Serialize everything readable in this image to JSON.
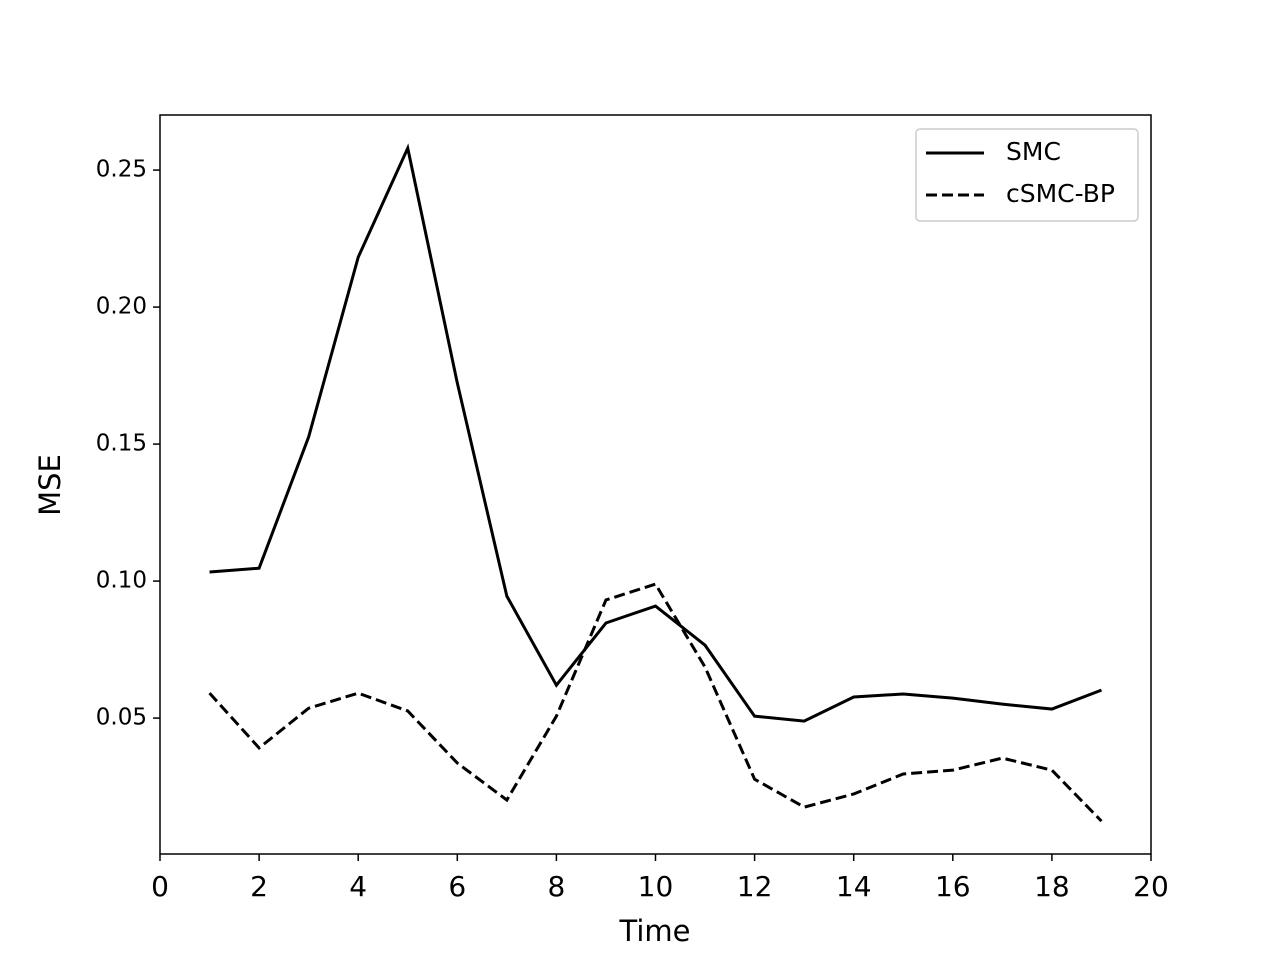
{
  "chart_data": {
    "type": "line",
    "x_label": "Time",
    "y_label": "MSE",
    "x": [
      1,
      2,
      3,
      4,
      5,
      6,
      7,
      8,
      9,
      10,
      11,
      12,
      13,
      14,
      15,
      16,
      17,
      18,
      19
    ],
    "series": [
      {
        "name": "SMC",
        "color": "#000000",
        "linestyle": "solid",
        "values": [
          0.1033,
          0.1047,
          0.1526,
          0.2182,
          0.258,
          0.1723,
          0.0945,
          0.062,
          0.0847,
          0.0909,
          0.0766,
          0.0507,
          0.0489,
          0.0577,
          0.0588,
          0.0573,
          0.0551,
          0.0533,
          0.0602
        ]
      },
      {
        "name": "cSMC-BP",
        "color": "#000000",
        "linestyle": "dashed",
        "values": [
          0.0591,
          0.0391,
          0.0536,
          0.0591,
          0.0526,
          0.0336,
          0.0201,
          0.0507,
          0.0931,
          0.0989,
          0.0686,
          0.0277,
          0.0175,
          0.0223,
          0.0296,
          0.031,
          0.0354,
          0.031,
          0.0124
        ]
      }
    ],
    "xlim": [
      0,
      20
    ],
    "xticks": [
      0,
      2,
      4,
      6,
      8,
      10,
      12,
      14,
      16,
      18,
      20
    ],
    "ylim": [
      0.0004,
      0.2701
    ],
    "yticks": [
      0.05,
      {
        "value": 0.1,
        "label": "0.10"
      },
      0.15,
      {
        "value": 0.2,
        "label": "0.20"
      },
      0.25
    ],
    "legend": "upper right",
    "grid": false
  }
}
